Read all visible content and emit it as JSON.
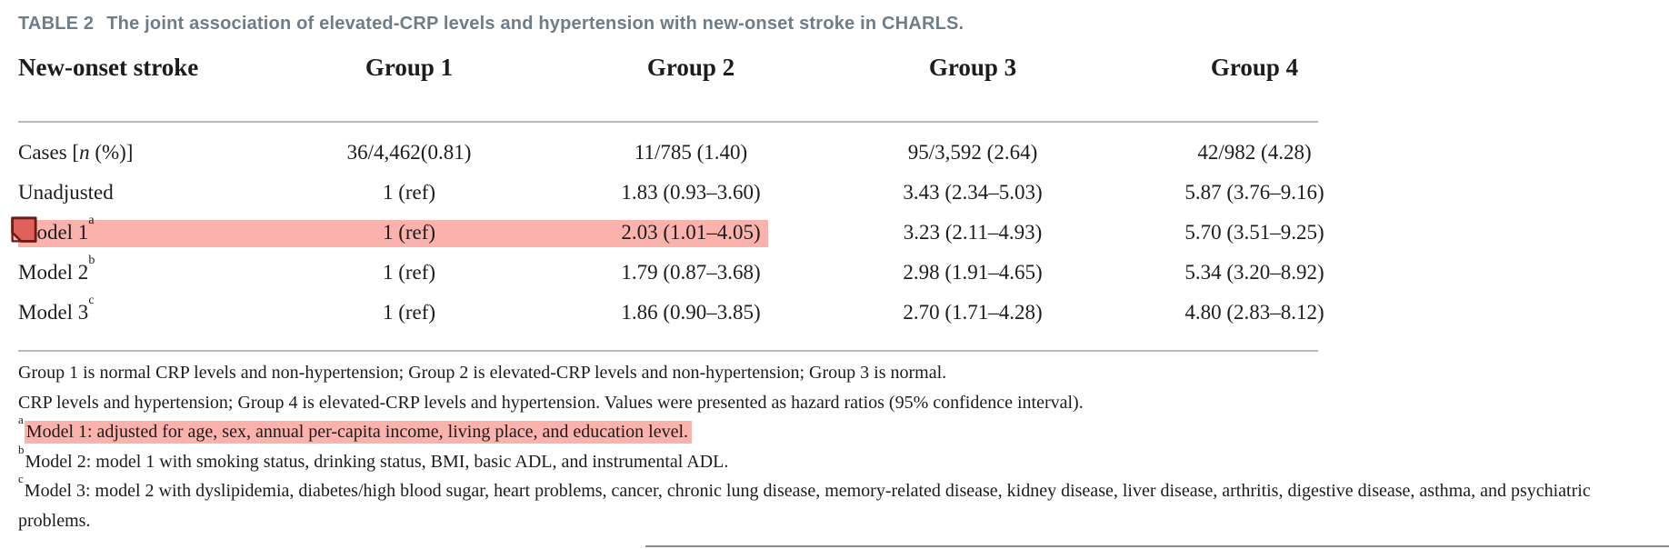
{
  "title": {
    "label": "TABLE 2",
    "text": "The joint association of elevated-CRP levels and hypertension with new-onset stroke in CHARLS."
  },
  "table": {
    "header": [
      "New-onset stroke",
      "Group 1",
      "Group 2",
      "Group 3",
      "Group 4"
    ],
    "rows": [
      {
        "label_parts": [
          {
            "t": "Cases ["
          },
          {
            "t": "n",
            "italic": true
          },
          {
            "t": " (%)]"
          }
        ],
        "values": [
          "36/4,462(0.81)",
          "11/785 (1.40)",
          "95/3,592 (2.64)",
          "42/982 (4.28)"
        ],
        "highlighted": false
      },
      {
        "label_parts": [
          {
            "t": "Unadjusted"
          }
        ],
        "values": [
          "1 (ref)",
          "1.83 (0.93–3.60)",
          "3.43 (2.34–5.03)",
          "5.87 (3.76–9.16)"
        ],
        "highlighted": false
      },
      {
        "label_parts": [
          {
            "t": "Model 1"
          },
          {
            "t": "a",
            "sup": true
          }
        ],
        "values": [
          "1 (ref)",
          "2.03 (1.01–4.05)",
          "3.23 (2.11–4.93)",
          "5.70 (3.51–9.25)"
        ],
        "highlighted": true
      },
      {
        "label_parts": [
          {
            "t": "Model 2"
          },
          {
            "t": "b",
            "sup": true
          }
        ],
        "values": [
          "1 (ref)",
          "1.79 (0.87–3.68)",
          "2.98 (1.91–4.65)",
          "5.34 (3.20–8.92)"
        ],
        "highlighted": false
      },
      {
        "label_parts": [
          {
            "t": "Model 3"
          },
          {
            "t": "c",
            "sup": true
          }
        ],
        "values": [
          "1 (ref)",
          "1.86 (0.90–3.85)",
          "2.70 (1.71–4.28)",
          "4.80 (2.83–8.12)"
        ],
        "highlighted": false
      }
    ]
  },
  "footnotes": [
    {
      "marker": "",
      "text": "Group 1 is normal CRP levels and non-hypertension; Group 2 is elevated-CRP levels and non-hypertension; Group 3 is normal.",
      "highlighted": false
    },
    {
      "marker": "",
      "text": "CRP levels and hypertension; Group 4 is elevated-CRP levels and hypertension. Values were presented as hazard ratios (95% confidence interval).",
      "highlighted": false
    },
    {
      "marker": "a",
      "text": "Model 1: adjusted for age, sex, annual per-capita income, living place, and education level.",
      "highlighted": true
    },
    {
      "marker": "b",
      "text": "Model 2: model 1 with smoking status, drinking status, BMI, basic ADL, and instrumental ADL.",
      "highlighted": false
    },
    {
      "marker": "c",
      "text": "Model 3: model 2 with dyslipidemia, diabetes/high blood sugar, heart problems, cancer, chronic lung disease, memory-related disease, kidney disease, liver disease, arthritis, digestive disease, asthma, and psychiatric problems.",
      "highlighted": false
    }
  ],
  "icons": {
    "note_icon": "sticky-note-annotation-icon"
  },
  "colors": {
    "highlight": "#fbb1ac",
    "note_fill": "#e2605b",
    "note_fold": "#f6b8b2",
    "note_border": "#6e1b15",
    "title_color": "#6e7d88",
    "rule": "#b9b9b9",
    "text": "#1c1c1c",
    "bottom_rule": "#8c8c8c"
  }
}
